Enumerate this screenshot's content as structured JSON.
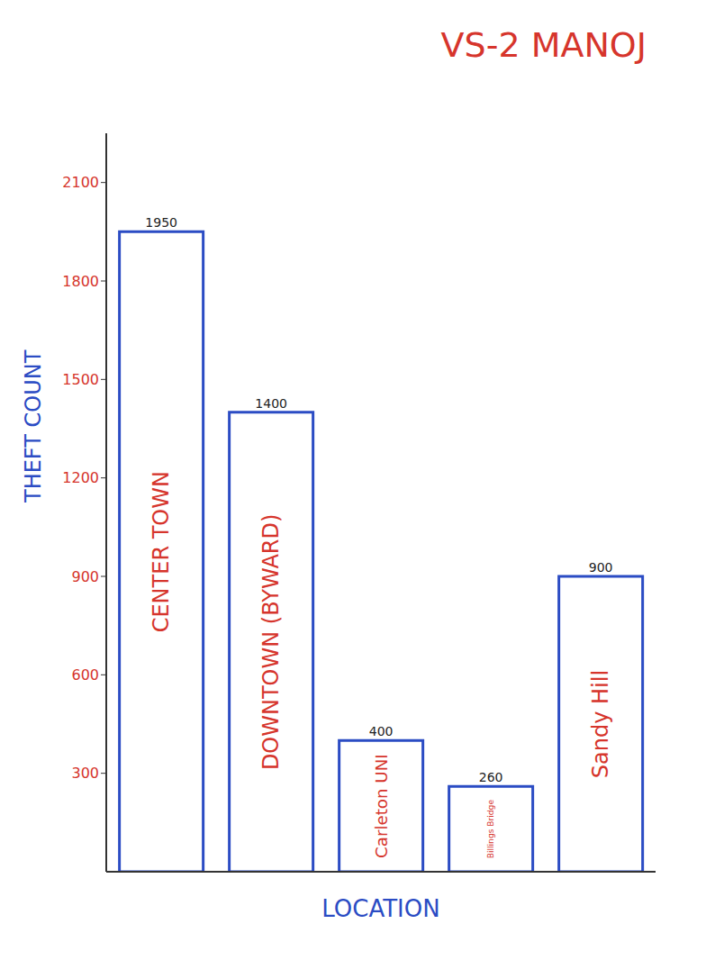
{
  "chart_data": {
    "type": "bar",
    "title": "VS-2 MANOJ",
    "x_label": "LOCATION",
    "y_label": "THEFT COUNT",
    "categories": [
      "CENTER TOWN",
      "DOWNTOWN (BYWARD)",
      "Carleton UNI",
      "Billings Bridge",
      "Sandy Hill"
    ],
    "values": [
      1950,
      1400,
      400,
      260,
      900
    ],
    "color": "#2b4cc4",
    "ylim": [
      0,
      2250
    ],
    "yticks": [
      300,
      600,
      900,
      1200,
      1500,
      1800,
      2100
    ],
    "grid": false,
    "data_labels": true,
    "tick_labels": "y"
  }
}
